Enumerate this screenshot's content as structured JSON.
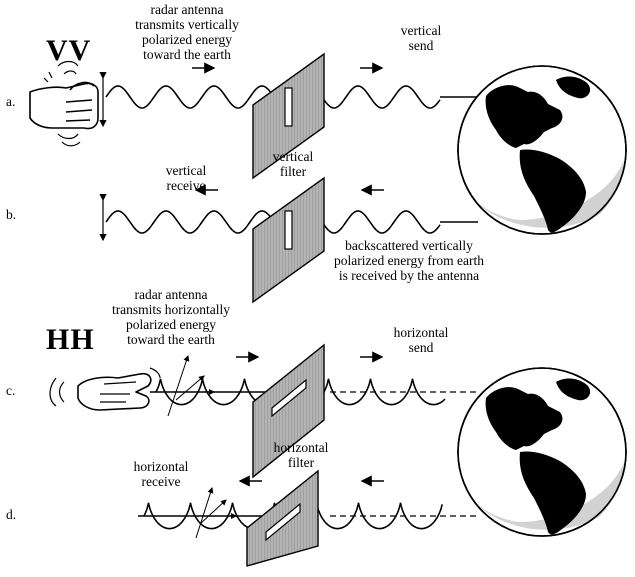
{
  "modes": {
    "vv": "VV",
    "hh": "HH"
  },
  "rows": {
    "a": "a.",
    "b": "b.",
    "c": "c.",
    "d": "d."
  },
  "labels": {
    "vv_transmit": [
      "radar antenna",
      "transmits vertically",
      "polarized energy",
      "toward the earth"
    ],
    "vertical_send": [
      "vertical",
      "send"
    ],
    "vertical_filter": [
      "vertical",
      "filter"
    ],
    "vertical_receive": [
      "vertical",
      "receive"
    ],
    "vv_backscatter": [
      "backscattered vertically",
      "polarized energy from earth",
      "is received by the antenna"
    ],
    "hh_transmit": [
      "radar antenna",
      "transmits horizontally",
      "polarized energy",
      "toward the earth"
    ],
    "horizontal_send": [
      "horizontal",
      "send"
    ],
    "horizontal_filter": [
      "horizontal",
      "filter"
    ],
    "horizontal_receive": [
      "horizontal",
      "receive"
    ]
  },
  "icons": {
    "hand_vertical": "hand-shaking-vertical-icon",
    "hand_horizontal": "hand-shaking-horizontal-icon",
    "earth": "earth-globe-icon",
    "filter": "polarizing-filter-icon",
    "arrow": "direction-arrow-icon"
  },
  "colors": {
    "ink": "#000000",
    "filter_fill": "#a9a9a9",
    "globe_light": "#ffffff",
    "globe_shadow": "#d2d2d2"
  }
}
